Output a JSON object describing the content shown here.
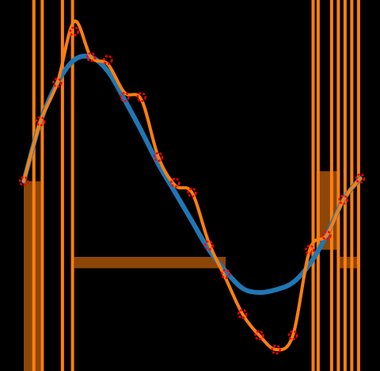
{
  "chart_data": {
    "type": "line",
    "title": "",
    "xlabel": "",
    "ylabel": "",
    "axes_visible": false,
    "grid": false,
    "legend": "none",
    "xlim": [
      0,
      10
    ],
    "ylim": [
      -1.3,
      1.3
    ],
    "colors": {
      "background": "#000000",
      "smooth_fit": "#1f77b4",
      "interpolant": "#ff7f0e",
      "interpolant_band": "#ff7f0e",
      "points": "#ff0000"
    },
    "series": [
      {
        "name": "",
        "role": "smooth_fit",
        "x": [
          0,
          0.5,
          1,
          1.5,
          2,
          2.5,
          3,
          3.5,
          4,
          4.5,
          5,
          5.5,
          6,
          6.5,
          7,
          7.5,
          8,
          8.5,
          9,
          9.5,
          10
        ],
        "y": [
          0.03,
          0.45,
          0.72,
          0.88,
          0.9,
          0.8,
          0.6,
          0.38,
          0.15,
          -0.05,
          -0.25,
          -0.45,
          -0.6,
          -0.72,
          -0.75,
          -0.73,
          -0.68,
          -0.55,
          -0.35,
          -0.1,
          0.05
        ]
      },
      {
        "name": "",
        "role": "interpolant",
        "x": [
          0,
          0.5,
          1,
          1.5,
          2,
          2.5,
          3,
          3.5,
          4,
          4.5,
          5,
          5.5,
          6,
          6.5,
          7,
          7.5,
          8,
          8.5,
          9,
          9.5,
          10
        ],
        "y": [
          0.03,
          0.45,
          0.72,
          1.15,
          0.9,
          0.85,
          0.65,
          0.6,
          0.2,
          0.0,
          -0.05,
          -0.4,
          -0.65,
          -0.9,
          -1.05,
          -1.15,
          -1.05,
          -0.45,
          -0.35,
          -0.1,
          0.05
        ]
      },
      {
        "name": "",
        "role": "data_points",
        "x": [
          0,
          0.5,
          1,
          1.5,
          2,
          2.5,
          3,
          3.5,
          4,
          4.5,
          5,
          5.5,
          6,
          6.5,
          7,
          7.5,
          8,
          8.5,
          9,
          9.5,
          10
        ],
        "y": [
          0.03,
          0.45,
          0.72,
          1.08,
          0.9,
          0.88,
          0.62,
          0.62,
          0.2,
          0.02,
          -0.05,
          -0.42,
          -0.62,
          -0.9,
          -1.05,
          -1.15,
          -1.05,
          -0.45,
          -0.35,
          -0.1,
          0.05
        ]
      }
    ],
    "bands": [
      {
        "x0": 0.0,
        "x1": 0.5,
        "y0": -1.3,
        "y1": 0.03
      },
      {
        "x0": 1.5,
        "x1": 6.0,
        "y0": -0.58,
        "y1": -0.5
      },
      {
        "x0": 8.7,
        "x1": 9.4,
        "y0": -0.45,
        "y1": 0.1
      },
      {
        "x0": 9.4,
        "x1": 10.0,
        "y0": -0.58,
        "y1": -0.5
      }
    ],
    "spikes_x": [
      0.3,
      0.55,
      1.15,
      1.45,
      8.6,
      8.75,
      9.15,
      9.35,
      9.55,
      9.75,
      9.95
    ]
  }
}
